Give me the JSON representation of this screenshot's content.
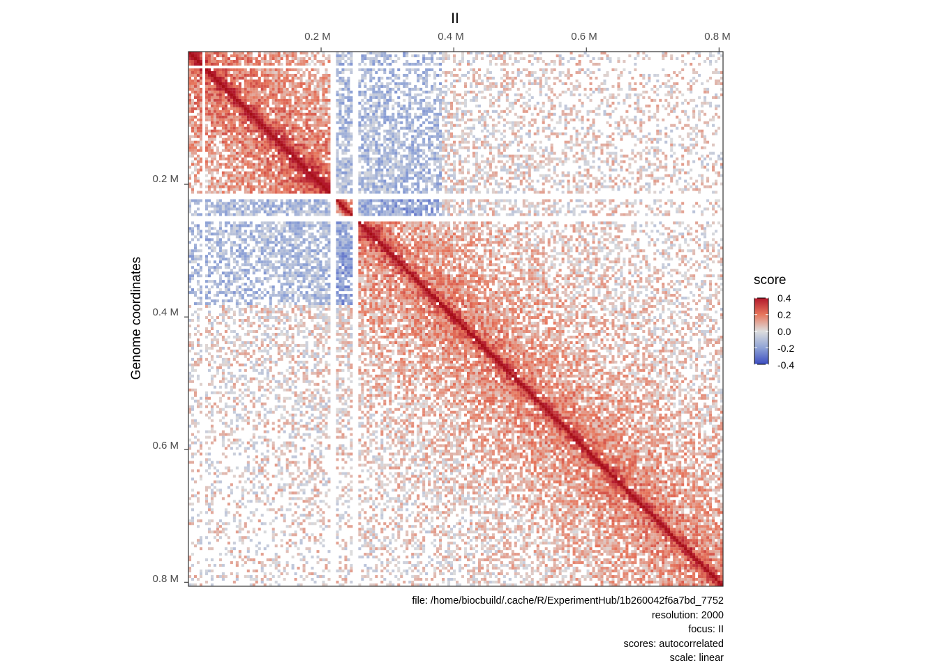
{
  "chart_data": {
    "type": "heatmap",
    "title": "II",
    "xlabel": "",
    "ylabel": "Genome coordinates",
    "x_ticks": [
      {
        "value": 200000,
        "label": "0.2 M"
      },
      {
        "value": 400000,
        "label": "0.4 M"
      },
      {
        "value": 600000,
        "label": "0.6 M"
      },
      {
        "value": 800000,
        "label": "0.8 M"
      }
    ],
    "y_ticks": [
      {
        "value": 200000,
        "label": "0.2 M"
      },
      {
        "value": 400000,
        "label": "0.4 M"
      },
      {
        "value": 600000,
        "label": "0.6 M"
      },
      {
        "value": 800000,
        "label": "0.8 M"
      }
    ],
    "xlim": [
      0,
      806000
    ],
    "ylim": [
      0,
      806000
    ],
    "y_reversed": true,
    "resolution_bp": 2000,
    "masked_regions": [
      {
        "start": 20000,
        "end": 26000
      },
      {
        "start": 216000,
        "end": 222000
      },
      {
        "start": 246000,
        "end": 256000
      }
    ],
    "domains": [
      {
        "start": 0,
        "end": 216000,
        "strength": 0.25
      },
      {
        "start": 256000,
        "end": 806000,
        "strength": 0.2
      }
    ],
    "hotspots": [
      {
        "x": 236000,
        "y": 236000,
        "value": 0.4
      },
      {
        "x": 184000,
        "y": 184000,
        "value": 0.3
      },
      {
        "x": 275000,
        "y": 275000,
        "value": 0.35
      }
    ],
    "anticorrelated_blocks": [
      {
        "x_start": 220000,
        "x_end": 380000,
        "y_start": 0,
        "y_end": 216000,
        "value": -0.2
      },
      {
        "x_start": 256000,
        "x_end": 380000,
        "y_start": 216000,
        "y_end": 256000,
        "value": -0.3
      }
    ],
    "legend": {
      "title": "score",
      "labels": [
        "0.4",
        "0.2",
        "0.0",
        "-0.2",
        "-0.4"
      ],
      "values": [
        0.4,
        0.2,
        0.0,
        -0.2,
        -0.4
      ],
      "colors": [
        "#b2182b",
        "#e7775d",
        "#dddddd",
        "#8fa3d6",
        "#3b4cc0"
      ],
      "position": "right"
    }
  },
  "caption": {
    "file": "file: /home/biocbuild/.cache/R/ExperimentHub/1b260042f6a7bd_7752",
    "resolution": "resolution: 2000",
    "focus": "focus: II",
    "scores": "scores: autocorrelated",
    "scale": "scale: linear"
  }
}
